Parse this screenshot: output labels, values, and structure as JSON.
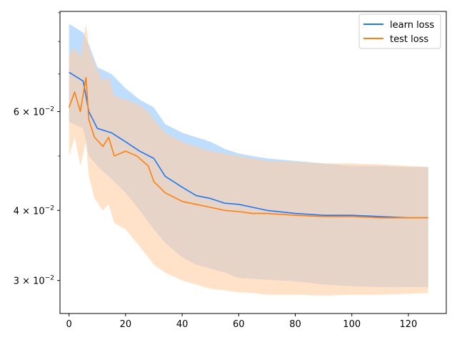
{
  "chart_data": {
    "type": "line",
    "title": "",
    "xlabel": "",
    "ylabel": "",
    "xlim": [
      -3.2,
      133.4
    ],
    "ylim": [
      0.0262,
      0.0905
    ],
    "yscale": "log",
    "grid": false,
    "legend_position": "top-right",
    "x_ticks": [
      0,
      20,
      40,
      60,
      80,
      100,
      120
    ],
    "x_tick_labels": [
      "0",
      "20",
      "40",
      "60",
      "80",
      "100",
      "120"
    ],
    "y_ticks": [
      0.03,
      0.04,
      0.06
    ],
    "y_tick_labels": [
      {
        "mant": "3",
        "exp": "−2"
      },
      {
        "mant": "4",
        "exp": "−2"
      },
      {
        "mant": "6",
        "exp": "−2"
      }
    ],
    "series": [
      {
        "name": "learn loss",
        "color": "#1f77f4",
        "band_color": "#a9d1fb",
        "points": [
          [
            0,
            0.0705,
            0.0575,
            0.086
          ],
          [
            5,
            0.068,
            0.056,
            0.083
          ],
          [
            7,
            0.06,
            0.05,
            0.079
          ],
          [
            10,
            0.056,
            0.048,
            0.072
          ],
          [
            15,
            0.055,
            0.0455,
            0.07
          ],
          [
            20,
            0.053,
            0.043,
            0.066
          ],
          [
            25,
            0.051,
            0.04,
            0.063
          ],
          [
            30,
            0.0495,
            0.037,
            0.061
          ],
          [
            34,
            0.046,
            0.035,
            0.057
          ],
          [
            40,
            0.044,
            0.033,
            0.055
          ],
          [
            45,
            0.0425,
            0.032,
            0.054
          ],
          [
            50,
            0.042,
            0.0315,
            0.053
          ],
          [
            55,
            0.0412,
            0.031,
            0.0515
          ],
          [
            60,
            0.041,
            0.0303,
            0.0505
          ],
          [
            65,
            0.0405,
            0.0302,
            0.05
          ],
          [
            70,
            0.04,
            0.0301,
            0.0495
          ],
          [
            80,
            0.0395,
            0.0299,
            0.049
          ],
          [
            90,
            0.0392,
            0.0295,
            0.0485
          ],
          [
            100,
            0.0392,
            0.0293,
            0.048
          ],
          [
            110,
            0.039,
            0.0292,
            0.048
          ],
          [
            120,
            0.0388,
            0.0292,
            0.0478
          ],
          [
            127,
            0.0388,
            0.0292,
            0.0478
          ]
        ]
      },
      {
        "name": "test loss",
        "color": "#ff7f0e",
        "band_color": "#ffcfa3",
        "points": [
          [
            0,
            0.061,
            0.05,
            0.076
          ],
          [
            2,
            0.065,
            0.054,
            0.078
          ],
          [
            4,
            0.06,
            0.048,
            0.075
          ],
          [
            6,
            0.069,
            0.053,
            0.086
          ],
          [
            7,
            0.058,
            0.046,
            0.078
          ],
          [
            9,
            0.054,
            0.042,
            0.073
          ],
          [
            12,
            0.052,
            0.04,
            0.068
          ],
          [
            14,
            0.054,
            0.041,
            0.069
          ],
          [
            16,
            0.05,
            0.038,
            0.064
          ],
          [
            20,
            0.051,
            0.037,
            0.063
          ],
          [
            24,
            0.05,
            0.035,
            0.062
          ],
          [
            28,
            0.048,
            0.033,
            0.06
          ],
          [
            30,
            0.045,
            0.032,
            0.058
          ],
          [
            34,
            0.043,
            0.031,
            0.055
          ],
          [
            40,
            0.0415,
            0.03,
            0.053
          ],
          [
            45,
            0.041,
            0.0295,
            0.052
          ],
          [
            50,
            0.0405,
            0.029,
            0.051
          ],
          [
            55,
            0.04,
            0.0288,
            0.0505
          ],
          [
            60,
            0.0398,
            0.0286,
            0.05
          ],
          [
            65,
            0.0395,
            0.0285,
            0.0495
          ],
          [
            70,
            0.0395,
            0.0283,
            0.049
          ],
          [
            80,
            0.0392,
            0.0283,
            0.0488
          ],
          [
            90,
            0.039,
            0.0282,
            0.0485
          ],
          [
            100,
            0.039,
            0.0283,
            0.0485
          ],
          [
            110,
            0.0388,
            0.0283,
            0.0483
          ],
          [
            120,
            0.0388,
            0.0284,
            0.048
          ],
          [
            127,
            0.0388,
            0.0285,
            0.0478
          ]
        ]
      }
    ]
  }
}
